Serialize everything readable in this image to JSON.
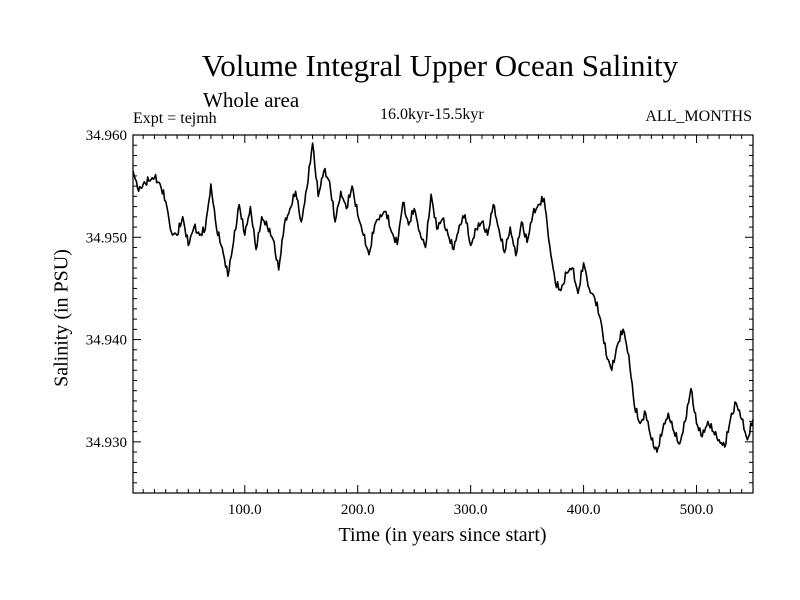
{
  "chart_data": {
    "type": "line",
    "title": "Volume Integral Upper Ocean Salinity",
    "subtitle": "Whole area",
    "expt": "Expt = tejmh",
    "period": "16.0kyr-15.5kyr",
    "months": "ALL_MONTHS",
    "xlabel": "Time (in years since start)",
    "ylabel": "Salinity (in PSU)",
    "xlim": [
      1,
      550
    ],
    "ylim": [
      34.925,
      34.96
    ],
    "x_ticks": [
      100,
      200,
      300,
      400,
      500
    ],
    "x_tick_labels": [
      "100.0",
      "200.0",
      "300.0",
      "400.0",
      "500.0"
    ],
    "y_ticks": [
      34.93,
      34.94,
      34.95,
      34.96
    ],
    "y_tick_labels": [
      "34.930",
      "34.940",
      "34.950",
      "34.960"
    ],
    "grid": false,
    "series": [
      {
        "name": "Salinity",
        "color": "#000000",
        "x": [
          1,
          6,
          10,
          15,
          20,
          25,
          30,
          35,
          40,
          45,
          50,
          55,
          60,
          65,
          70,
          75,
          80,
          85,
          90,
          95,
          100,
          105,
          110,
          115,
          120,
          125,
          130,
          135,
          140,
          145,
          150,
          155,
          160,
          165,
          170,
          175,
          180,
          185,
          190,
          195,
          200,
          205,
          210,
          215,
          220,
          225,
          230,
          235,
          240,
          245,
          250,
          255,
          260,
          265,
          270,
          275,
          280,
          285,
          290,
          295,
          300,
          305,
          310,
          315,
          320,
          325,
          330,
          335,
          340,
          345,
          350,
          355,
          360,
          365,
          370,
          375,
          380,
          385,
          390,
          395,
          400,
          405,
          410,
          415,
          420,
          425,
          430,
          435,
          440,
          445,
          450,
          455,
          460,
          465,
          470,
          475,
          480,
          485,
          490,
          495,
          500,
          505,
          510,
          515,
          520,
          525,
          530,
          535,
          540,
          545,
          550
        ],
        "values": [
          34.9565,
          34.9545,
          34.9552,
          34.9555,
          34.9558,
          34.9552,
          34.9535,
          34.9505,
          34.9502,
          34.952,
          34.9492,
          34.951,
          34.9502,
          34.9508,
          34.9552,
          34.9508,
          34.949,
          34.9462,
          34.9495,
          34.9532,
          34.9502,
          34.953,
          34.9488,
          34.952,
          34.951,
          34.9498,
          34.9468,
          34.9512,
          34.9528,
          34.9545,
          34.9515,
          34.9548,
          34.9592,
          34.954,
          34.9565,
          34.9555,
          34.9515,
          34.9545,
          34.9528,
          34.955,
          34.9522,
          34.9502,
          34.9483,
          34.9512,
          34.9522,
          34.9525,
          34.9505,
          34.9493,
          34.9534,
          34.9512,
          34.9528,
          34.9505,
          34.949,
          34.9542,
          34.9508,
          34.9518,
          34.9502,
          34.9488,
          34.9512,
          34.9522,
          34.9492,
          34.9508,
          34.9515,
          34.9502,
          34.9532,
          34.9508,
          34.9485,
          34.951,
          34.9482,
          34.9515,
          34.9495,
          34.9522,
          34.9532,
          34.9538,
          34.9492,
          34.9455,
          34.9448,
          34.9465,
          34.947,
          34.9445,
          34.9475,
          34.945,
          34.944,
          34.942,
          34.9385,
          34.937,
          34.9395,
          34.941,
          34.9385,
          34.9335,
          34.9318,
          34.9328,
          34.9302,
          34.929,
          34.9312,
          34.9328,
          34.931,
          34.9298,
          34.932,
          34.9352,
          34.9318,
          34.9305,
          34.932,
          34.931,
          34.9302,
          34.9295,
          34.9322,
          34.9338,
          34.9322,
          34.9302,
          34.9322
        ]
      }
    ]
  }
}
